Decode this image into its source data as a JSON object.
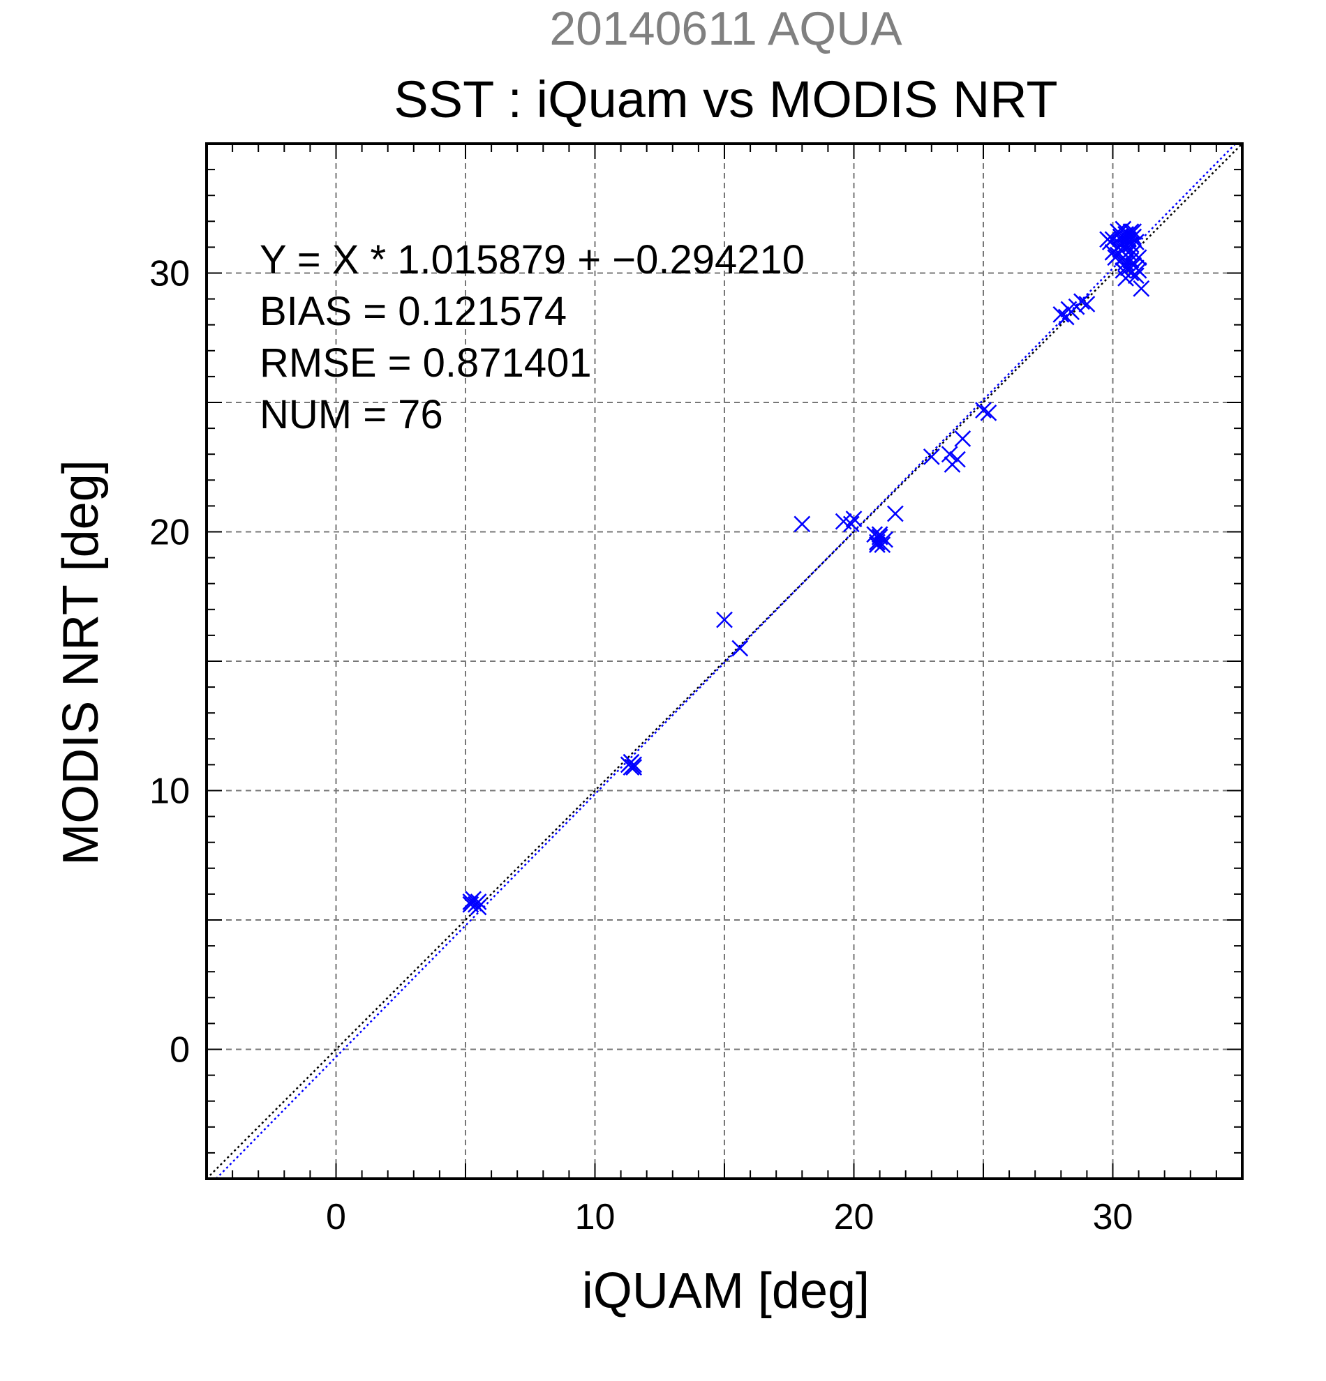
{
  "colors": {
    "points": "#0000ff",
    "fit_line": "#0000ff",
    "identity_line": "#000000",
    "grid": "#777777",
    "suptitle": "#808080"
  },
  "chart_data": {
    "type": "scatter",
    "suptitle": "20140611 AQUA",
    "title": "SST : iQuam vs MODIS NRT",
    "xlabel": "iQUAM [deg]",
    "ylabel": "MODIS NRT [deg]",
    "xlim": [
      -5,
      35
    ],
    "ylim": [
      -5,
      35
    ],
    "xticks": [
      0,
      10,
      20,
      30
    ],
    "yticks": [
      0,
      10,
      20,
      30
    ],
    "grid": true,
    "marker": "x",
    "annotations": [
      "Y = X * 1.015879 + −0.294210",
      "BIAS = 0.121574",
      "RMSE = 0.871401",
      "NUM = 76"
    ],
    "lines": [
      {
        "kind": "identity",
        "slope": 1,
        "intercept": 0,
        "style": "dotted",
        "color": "#000000"
      },
      {
        "kind": "fit",
        "slope": 1.015879,
        "intercept": -0.29421,
        "style": "dotted",
        "color": "#0000ff"
      }
    ],
    "points": [
      [
        5.2,
        5.7
      ],
      [
        5.3,
        5.8
      ],
      [
        5.4,
        5.6
      ],
      [
        5.5,
        5.5
      ],
      [
        5.2,
        5.6
      ],
      [
        5.5,
        5.7
      ],
      [
        11.3,
        11.0
      ],
      [
        11.4,
        10.9
      ],
      [
        11.5,
        11.0
      ],
      [
        11.4,
        11.1
      ],
      [
        11.5,
        10.9
      ],
      [
        15.0,
        16.6
      ],
      [
        15.6,
        15.5
      ],
      [
        18.0,
        20.3
      ],
      [
        19.6,
        20.4
      ],
      [
        19.9,
        20.3
      ],
      [
        20.0,
        20.5
      ],
      [
        20.8,
        19.9
      ],
      [
        20.9,
        19.6
      ],
      [
        21.0,
        19.8
      ],
      [
        21.1,
        19.5
      ],
      [
        21.2,
        19.7
      ],
      [
        21.0,
        19.9
      ],
      [
        20.9,
        19.5
      ],
      [
        21.6,
        20.7
      ],
      [
        23.0,
        22.9
      ],
      [
        23.7,
        23.0
      ],
      [
        23.8,
        22.6
      ],
      [
        24.0,
        22.8
      ],
      [
        24.2,
        23.6
      ],
      [
        25.0,
        24.7
      ],
      [
        25.2,
        24.6
      ],
      [
        28.0,
        28.4
      ],
      [
        28.2,
        28.3
      ],
      [
        28.4,
        28.5
      ],
      [
        28.6,
        28.7
      ],
      [
        28.8,
        28.9
      ],
      [
        29.0,
        28.8
      ],
      [
        28.3,
        28.6
      ],
      [
        29.8,
        31.3
      ],
      [
        29.9,
        31.2
      ],
      [
        30.0,
        31.3
      ],
      [
        30.0,
        30.8
      ],
      [
        30.1,
        30.6
      ],
      [
        30.2,
        31.0
      ],
      [
        30.2,
        31.6
      ],
      [
        30.3,
        31.4
      ],
      [
        30.3,
        30.9
      ],
      [
        30.4,
        31.7
      ],
      [
        30.4,
        31.2
      ],
      [
        30.4,
        30.6
      ],
      [
        30.5,
        31.5
      ],
      [
        30.5,
        31.0
      ],
      [
        30.5,
        30.4
      ],
      [
        30.6,
        31.3
      ],
      [
        30.6,
        30.8
      ],
      [
        30.6,
        30.2
      ],
      [
        30.7,
        31.6
      ],
      [
        30.7,
        31.1
      ],
      [
        30.7,
        30.5
      ],
      [
        30.7,
        30.0
      ],
      [
        30.8,
        31.4
      ],
      [
        30.8,
        30.8
      ],
      [
        30.8,
        30.3
      ],
      [
        30.9,
        31.2
      ],
      [
        30.9,
        29.9
      ],
      [
        31.0,
        30.1
      ],
      [
        30.5,
        29.8
      ],
      [
        31.0,
        30.6
      ],
      [
        31.1,
        29.4
      ],
      [
        30.3,
        31.1
      ],
      [
        30.6,
        31.5
      ],
      [
        30.9,
        30.2
      ],
      [
        30.2,
        30.7
      ],
      [
        30.8,
        31.6
      ],
      [
        30.4,
        30.1
      ]
    ]
  }
}
